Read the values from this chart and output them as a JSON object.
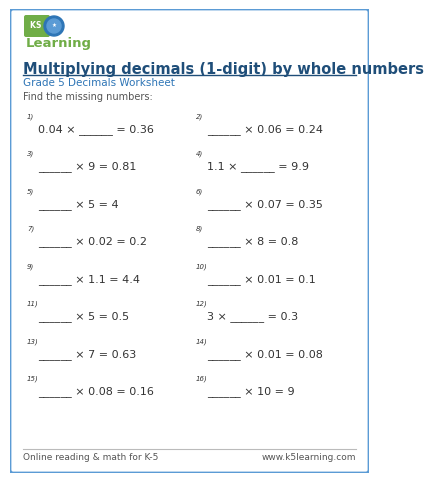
{
  "title": "Multiplying decimals (1-digit) by whole numbers",
  "subtitle": "Grade 5 Decimals Worksheet",
  "instruction": "Find the missing numbers:",
  "border_color": "#5b9bd5",
  "title_color": "#1f4e79",
  "subtitle_color": "#2e75b6",
  "instruction_color": "#555555",
  "text_color": "#333333",
  "background_color": "#ffffff",
  "footer_left": "Online reading & math for K-5",
  "footer_right": "www.k5learning.com",
  "logo_green": "#70ad47",
  "logo_blue_dark": "#2e75b6",
  "logo_blue_light": "#5b9bd5",
  "pairs": [
    [
      "0.04 × ______ = 0.36",
      "______ × 0.06 = 0.24"
    ],
    [
      "______ × 9 = 0.81",
      "1.1 × ______ = 9.9"
    ],
    [
      "______ × 5 = 4",
      "______ × 0.07 = 0.35"
    ],
    [
      "______ × 0.02 = 0.2",
      "______ × 8 = 0.8"
    ],
    [
      "______ × 1.1 = 4.4",
      "______ × 0.01 = 0.1"
    ],
    [
      "______ × 5 = 0.5",
      "3 × ______ = 0.3"
    ],
    [
      "______ × 7 = 0.63",
      "______ × 0.01 = 0.08"
    ],
    [
      "______ × 0.08 = 0.16",
      "______ × 10 = 9"
    ]
  ],
  "nums_left": [
    "1)",
    "3)",
    "5)",
    "7)",
    "9)",
    "11)",
    "13)",
    "15)"
  ],
  "nums_right": [
    "2)",
    "4)",
    "6)",
    "8)",
    "10)",
    "12)",
    "14)",
    "16)"
  ]
}
